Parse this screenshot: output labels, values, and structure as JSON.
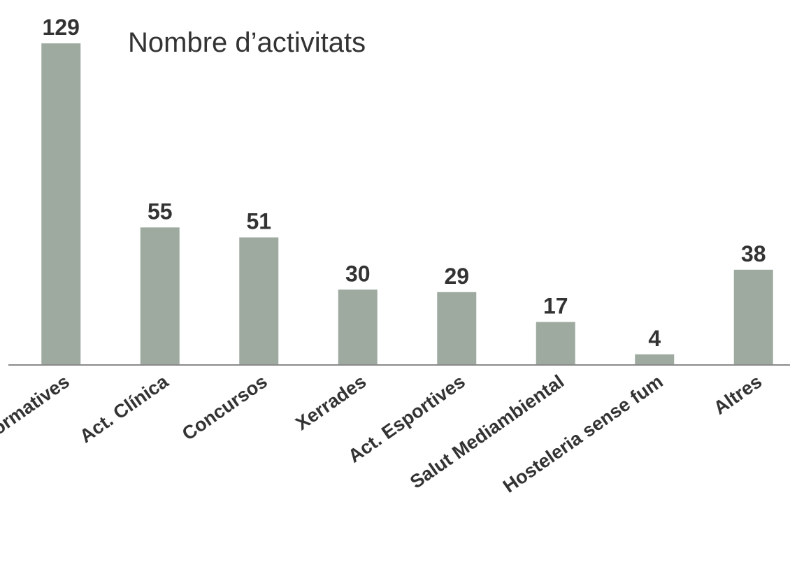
{
  "chart_data": {
    "type": "bar",
    "title": "Nombre d’activitats",
    "categories": [
      "Act. Informatives",
      "Act. Clínica",
      "Concursos",
      "Xerrades",
      "Act. Esportives",
      "Salut Mediambiental",
      "Hosteleria sense fum",
      "Altres"
    ],
    "values": [
      129,
      55,
      51,
      30,
      29,
      17,
      4,
      38
    ],
    "color": "#9eaaa0",
    "ylim": [
      0,
      129
    ]
  }
}
